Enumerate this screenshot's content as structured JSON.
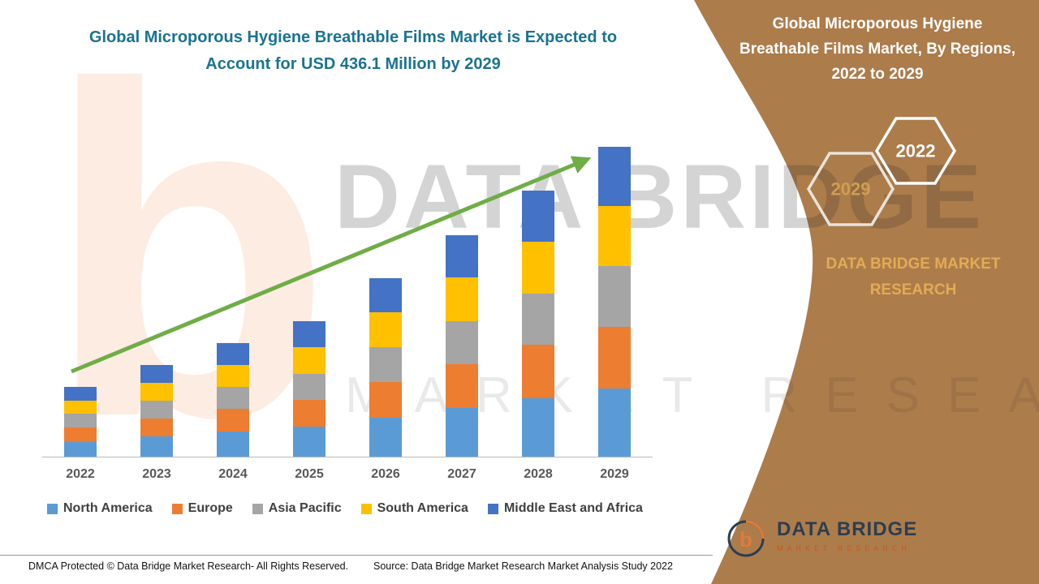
{
  "header": {
    "left_title_lines": {
      "0": "Global Microporous Hygiene Breathable Films Market is Expected to",
      "1": "Account for USD 436.1 Million by 2029"
    },
    "right_title_lines": {
      "0": "Global Microporous Hygiene",
      "1": "Breathable Films Market, By Regions,",
      "2": "2022 to 2029"
    }
  },
  "badges": {
    "hex_left": "2029",
    "hex_right": "2022"
  },
  "side_panel": {
    "brand_text": "DATA BRIDGE MARKET RESEARCH"
  },
  "watermark": {
    "letter": "b",
    "line1": "DATA BRIDGE",
    "line2": "MARKET RESEARCH"
  },
  "logo": {
    "monogram": "b",
    "title": "DATA BRIDGE",
    "subtitle": "MARKET RESEARCH"
  },
  "footer": {
    "dmca": "DMCA Protected © Data Bridge Market Research- All Rights Reserved.",
    "source": "Source: Data Bridge Market Research Market Analysis Study 2022"
  },
  "colors": {
    "teal": "#1b7390",
    "brown": "#ad7c4b",
    "gold": "#e2ab55",
    "arrow_green": "#6fad47"
  },
  "chart_data": {
    "type": "bar",
    "stacked": true,
    "title": "Global Microporous Hygiene Breathable Films Market is Expected to Account for USD 436.1 Million by 2029",
    "unit": "USD Million",
    "categories": [
      "2022",
      "2023",
      "2024",
      "2025",
      "2026",
      "2027",
      "2028",
      "2029"
    ],
    "series": [
      {
        "name": "North America",
        "color": "#5b9bd5",
        "values": [
          21.0,
          28.0,
          35.0,
          42.0,
          55.0,
          68.0,
          82.0,
          96.0
        ]
      },
      {
        "name": "Europe",
        "color": "#ed7d31",
        "values": [
          20.0,
          26.0,
          32.0,
          38.0,
          50.0,
          62.0,
          75.0,
          87.0
        ]
      },
      {
        "name": "Asia Pacific",
        "color": "#a5a5a5",
        "values": [
          19.0,
          25.0,
          31.0,
          37.0,
          49.0,
          61.0,
          73.0,
          85.0
        ]
      },
      {
        "name": "South America",
        "color": "#ffc000",
        "values": [
          19.0,
          25.0,
          31.0,
          37.0,
          49.0,
          61.0,
          73.0,
          85.0
        ]
      },
      {
        "name": "Middle East and Africa",
        "color": "#4472c4",
        "values": [
          18.8,
          24.9,
          30.9,
          37.0,
          47.8,
          59.8,
          71.0,
          83.1
        ]
      }
    ],
    "totals": [
      97.8,
      128.9,
      159.9,
      191.0,
      250.8,
      311.8,
      374.0,
      436.1
    ],
    "ylim": [
      0,
      460
    ],
    "grid": false,
    "legend_position": "bottom",
    "annotations": [
      "upward green trend arrow from 2022 to 2029"
    ]
  }
}
